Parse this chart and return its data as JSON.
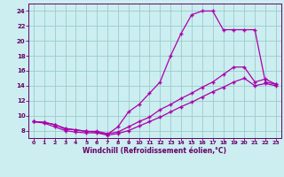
{
  "xlabel": "Windchill (Refroidissement éolien,°C)",
  "bg_color": "#cceef0",
  "line_color": "#aa00aa",
  "grid_color": "#99cccc",
  "axis_color": "#660066",
  "text_color": "#660066",
  "xlim": [
    -0.5,
    23.5
  ],
  "ylim": [
    7.0,
    25.0
  ],
  "xticks": [
    0,
    1,
    2,
    3,
    4,
    5,
    6,
    7,
    8,
    9,
    10,
    11,
    12,
    13,
    14,
    15,
    16,
    17,
    18,
    19,
    20,
    21,
    22,
    23
  ],
  "yticks": [
    8,
    10,
    12,
    14,
    16,
    18,
    20,
    22,
    24
  ],
  "line1_x": [
    0,
    1,
    2,
    3,
    4,
    5,
    6,
    7,
    8,
    9,
    10,
    11,
    12,
    13,
    14,
    15,
    16,
    17,
    18,
    19,
    20,
    21,
    22,
    23
  ],
  "line1_y": [
    9.2,
    9.1,
    8.8,
    8.3,
    8.1,
    7.9,
    7.8,
    7.5,
    8.5,
    10.5,
    11.5,
    13.0,
    14.5,
    18.0,
    21.0,
    23.5,
    24.0,
    24.0,
    21.5,
    21.5,
    21.5,
    21.5,
    14.5,
    14.2
  ],
  "line2_x": [
    0,
    1,
    2,
    3,
    4,
    5,
    6,
    7,
    8,
    9,
    10,
    11,
    12,
    13,
    14,
    15,
    16,
    17,
    18,
    19,
    20,
    21,
    22,
    23
  ],
  "line2_y": [
    9.2,
    9.1,
    8.8,
    8.2,
    8.1,
    7.9,
    7.9,
    7.6,
    7.8,
    8.5,
    9.2,
    9.8,
    10.8,
    11.5,
    12.3,
    13.0,
    13.8,
    14.5,
    15.5,
    16.5,
    16.5,
    14.5,
    14.9,
    14.2
  ],
  "line3_x": [
    0,
    1,
    2,
    3,
    4,
    5,
    6,
    7,
    8,
    9,
    10,
    11,
    12,
    13,
    14,
    15,
    16,
    17,
    18,
    19,
    20,
    21,
    22,
    23
  ],
  "line3_y": [
    9.2,
    9.0,
    8.5,
    8.0,
    7.8,
    7.7,
    7.7,
    7.4,
    7.6,
    8.0,
    8.6,
    9.2,
    9.8,
    10.5,
    11.2,
    11.8,
    12.5,
    13.2,
    13.8,
    14.5,
    15.0,
    14.0,
    14.3,
    14.0
  ]
}
